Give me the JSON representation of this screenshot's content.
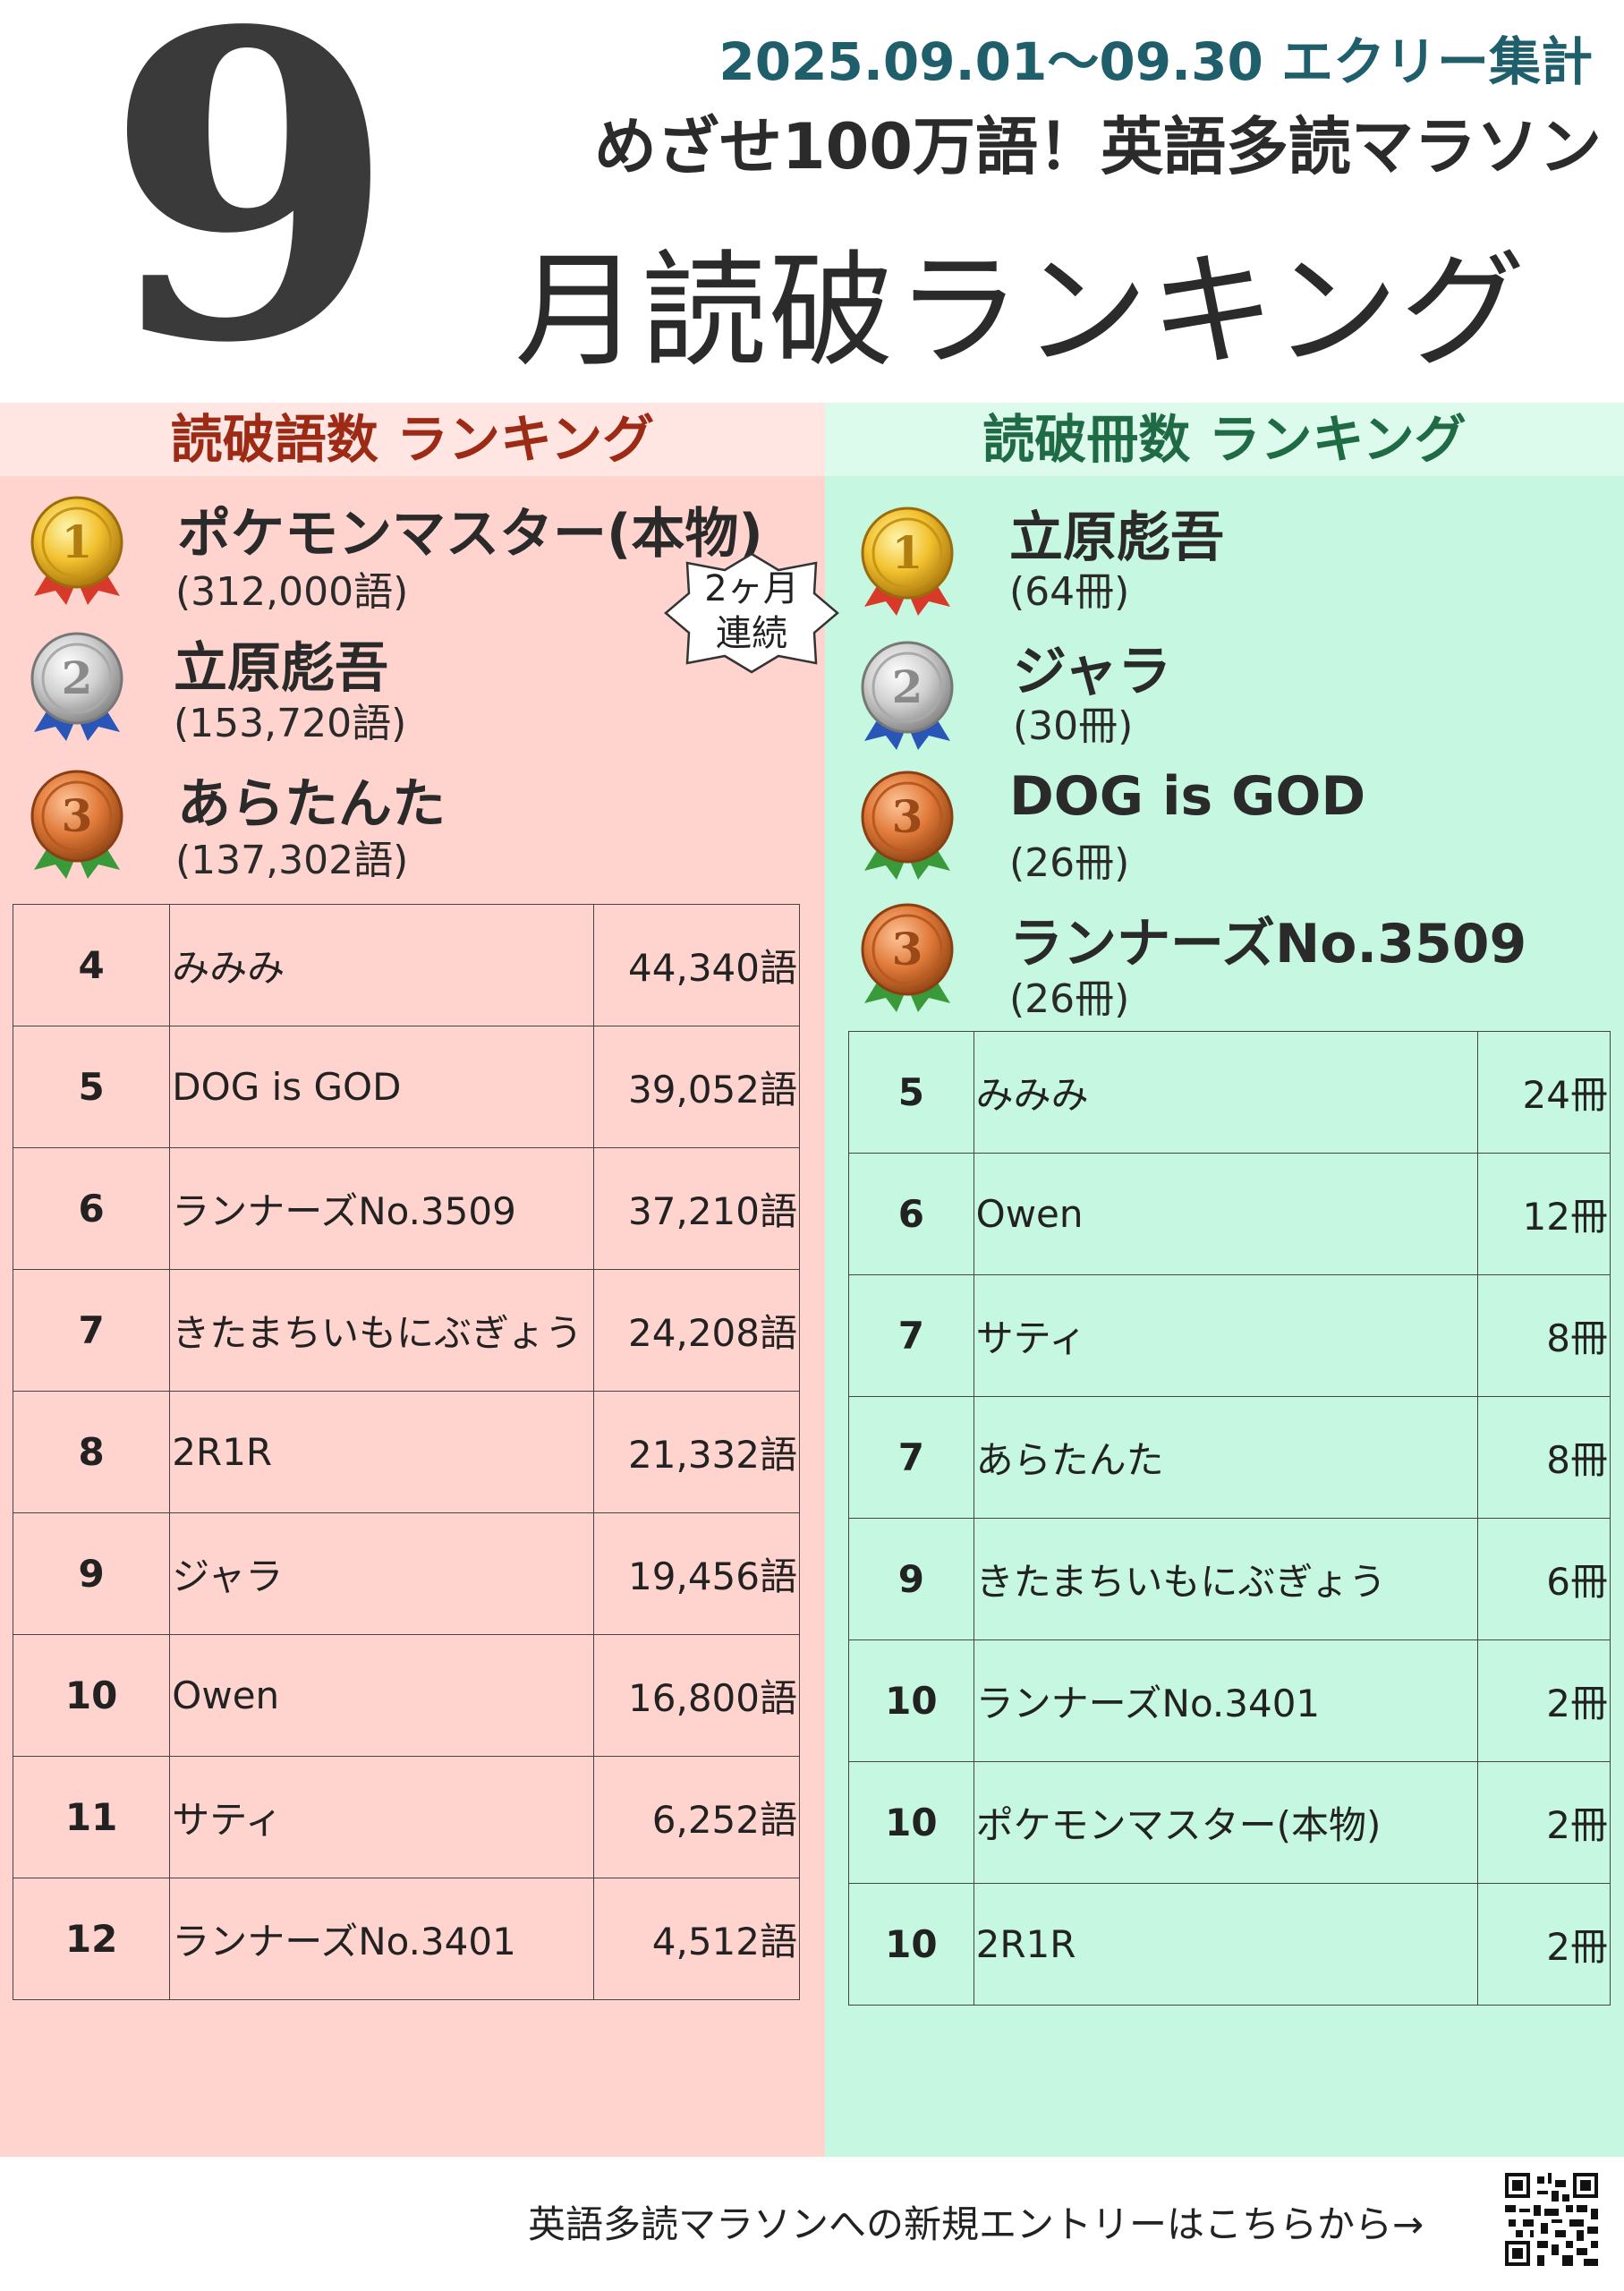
{
  "header": {
    "big_number": "9",
    "date_line": "2025.09.01～09.30 エクリー集計",
    "subtitle": "めざせ100万語！英語多読マラソン",
    "title": "月読破ランキング"
  },
  "words_ranking": {
    "heading": "読破語数 ランキング",
    "top3": [
      {
        "rank": "1",
        "name": "ポケモンマスター(本物)",
        "value": "(312,000語)"
      },
      {
        "rank": "2",
        "name": "立原彪吾",
        "value": "(153,720語)"
      },
      {
        "rank": "3",
        "name": "あらたんた",
        "value": "(137,302語)"
      }
    ],
    "streak_badge": {
      "line1": "2ヶ月",
      "line2": "連続"
    },
    "rows": [
      {
        "rank": "4",
        "name": "みみみ",
        "value": "44,340語"
      },
      {
        "rank": "5",
        "name": "DOG is GOD",
        "value": "39,052語"
      },
      {
        "rank": "6",
        "name": "ランナーズNo.3509",
        "value": "37,210語"
      },
      {
        "rank": "7",
        "name": "きたまちいもにぶぎょう",
        "value": "24,208語"
      },
      {
        "rank": "8",
        "name": "2R1R",
        "value": "21,332語"
      },
      {
        "rank": "9",
        "name": "ジャラ",
        "value": "19,456語"
      },
      {
        "rank": "10",
        "name": "Owen",
        "value": "16,800語"
      },
      {
        "rank": "11",
        "name": "サティ",
        "value": "6,252語"
      },
      {
        "rank": "12",
        "name": "ランナーズNo.3401",
        "value": "4,512語"
      }
    ]
  },
  "books_ranking": {
    "heading": "読破冊数 ランキング",
    "top": [
      {
        "rank": "1",
        "name": "立原彪吾",
        "value": "(64冊)"
      },
      {
        "rank": "2",
        "name": "ジャラ",
        "value": "(30冊)"
      },
      {
        "rank": "3",
        "name": "DOG is GOD",
        "value": "(26冊)"
      },
      {
        "rank": "3",
        "name": "ランナーズNo.3509",
        "value": "(26冊)"
      }
    ],
    "rows": [
      {
        "rank": "5",
        "name": "みみみ",
        "value": "24冊"
      },
      {
        "rank": "6",
        "name": "Owen",
        "value": "12冊"
      },
      {
        "rank": "7",
        "name": "サティ",
        "value": "8冊"
      },
      {
        "rank": "7",
        "name": "あらたんた",
        "value": "8冊"
      },
      {
        "rank": "9",
        "name": "きたまちいもにぶぎょう",
        "value": "6冊"
      },
      {
        "rank": "10",
        "name": "ランナーズNo.3401",
        "value": "2冊"
      },
      {
        "rank": "10",
        "name": "ポケモンマスター(本物)",
        "value": "2冊"
      },
      {
        "rank": "10",
        "name": "2R1R",
        "value": "2冊"
      }
    ]
  },
  "footer": {
    "entry_text": "英語多読マラソンへの新規エントリーはこちらから→",
    "qr_icon": "qr-code-icon"
  },
  "colors": {
    "left_panel": "#ffd4cf",
    "right_panel": "#c6f7e1",
    "left_heading": "#9c2a14",
    "right_heading": "#1f6b45",
    "date_color": "#1f5f6b"
  }
}
